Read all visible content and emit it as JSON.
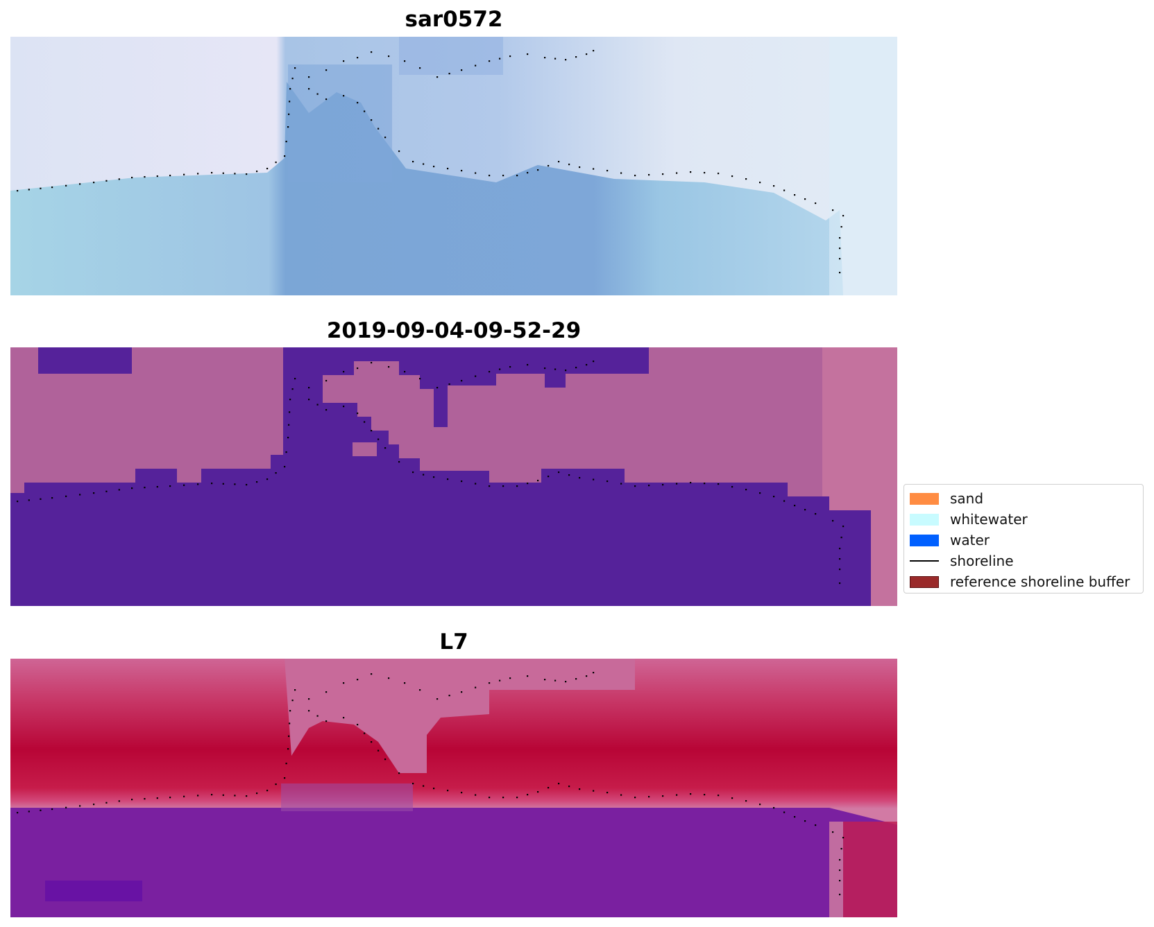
{
  "panels": [
    {
      "title": "sar0572",
      "kind": "rgb"
    },
    {
      "title": "2019-09-04-09-52-29",
      "kind": "classified"
    },
    {
      "title": "L7",
      "kind": "index"
    }
  ],
  "legend": {
    "items": [
      {
        "label": "sand",
        "color": "#ff8c42",
        "type": "patch"
      },
      {
        "label": "whitewater",
        "color": "#c8fbff",
        "type": "patch"
      },
      {
        "label": "water",
        "color": "#0060ff",
        "type": "patch"
      },
      {
        "label": "shoreline",
        "color": "#000000",
        "type": "line"
      },
      {
        "label": "reference shoreline buffer",
        "color": "#9a2a2a",
        "type": "patch"
      }
    ]
  },
  "colors": {
    "rgb_light": "#dfe6f5",
    "rgb_water": "#7ea6d8",
    "classified_land": "#b0629a",
    "classified_water": "#55229a",
    "index_land": "#c41545",
    "index_transition": "#cf6b9b",
    "index_water": "#7a20a0"
  }
}
